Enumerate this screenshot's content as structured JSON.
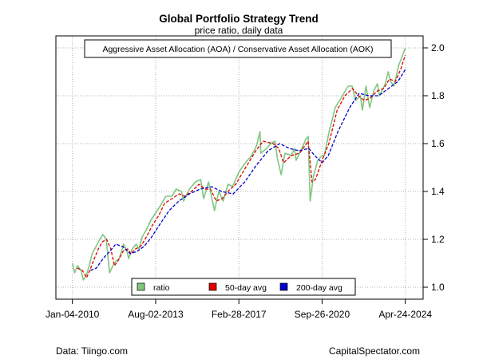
{
  "chart_data": {
    "type": "line",
    "title": "Global Portfolio Strategy Trend",
    "subtitle": "price ratio, daily data",
    "legend_title": "Aggressive Asset Allocation (AOA) / Conservative Asset Allocation (AOK)",
    "x_tick_labels": [
      "Jan-04-2010",
      "Aug-02-2013",
      "Feb-28-2017",
      "Sep-26-2020",
      "Apr-24-2024"
    ],
    "x_ticks": [
      "2010-01-04",
      "2013-08-02",
      "2017-02-28",
      "2020-09-26",
      "2024-04-24"
    ],
    "y_ticks": [
      1.0,
      1.2,
      1.4,
      1.6,
      1.8,
      2.0
    ],
    "xlim": [
      "2009-04-20",
      "2025-01-28"
    ],
    "ylim": [
      0.95,
      2.05
    ],
    "y_axis_side": "right",
    "grid": true,
    "legend_position": "bottom",
    "series": [
      {
        "name": "ratio",
        "color": "#7fc77f",
        "style": "solid",
        "points": [
          [
            "2010-01-04",
            1.1
          ],
          [
            "2010-02-08",
            1.06
          ],
          [
            "2010-03-25",
            1.09
          ],
          [
            "2010-05-20",
            1.07
          ],
          [
            "2010-06-25",
            1.03
          ],
          [
            "2010-08-10",
            1.05
          ],
          [
            "2010-09-25",
            1.09
          ],
          [
            "2010-11-10",
            1.14
          ],
          [
            "2011-01-10",
            1.17
          ],
          [
            "2011-03-10",
            1.2
          ],
          [
            "2011-04-29",
            1.22
          ],
          [
            "2011-06-20",
            1.2
          ],
          [
            "2011-08-10",
            1.06
          ],
          [
            "2011-10-03",
            1.09
          ],
          [
            "2011-11-20",
            1.11
          ],
          [
            "2012-01-10",
            1.12
          ],
          [
            "2012-03-20",
            1.18
          ],
          [
            "2012-05-10",
            1.15
          ],
          [
            "2012-06-04",
            1.12
          ],
          [
            "2012-08-01",
            1.16
          ],
          [
            "2012-10-01",
            1.18
          ],
          [
            "2012-11-15",
            1.16
          ],
          [
            "2013-01-02",
            1.21
          ],
          [
            "2013-03-10",
            1.24
          ],
          [
            "2013-05-20",
            1.28
          ],
          [
            "2013-08-02",
            1.31
          ],
          [
            "2013-10-15",
            1.34
          ],
          [
            "2014-01-10",
            1.38
          ],
          [
            "2014-04-15",
            1.38
          ],
          [
            "2014-06-20",
            1.41
          ],
          [
            "2014-09-10",
            1.4
          ],
          [
            "2014-10-15",
            1.36
          ],
          [
            "2015-01-15",
            1.41
          ],
          [
            "2015-04-20",
            1.44
          ],
          [
            "2015-07-10",
            1.45
          ],
          [
            "2015-08-25",
            1.37
          ],
          [
            "2015-11-10",
            1.44
          ],
          [
            "2016-02-11",
            1.32
          ],
          [
            "2016-04-20",
            1.4
          ],
          [
            "2016-06-27",
            1.36
          ],
          [
            "2016-09-10",
            1.43
          ],
          [
            "2016-11-20",
            1.42
          ],
          [
            "2017-02-28",
            1.48
          ],
          [
            "2017-06-10",
            1.52
          ],
          [
            "2017-09-15",
            1.55
          ],
          [
            "2017-12-01",
            1.59
          ],
          [
            "2018-01-26",
            1.65
          ],
          [
            "2018-02-08",
            1.56
          ],
          [
            "2018-05-10",
            1.58
          ],
          [
            "2018-07-10",
            1.6
          ],
          [
            "2018-09-20",
            1.61
          ],
          [
            "2018-10-25",
            1.54
          ],
          [
            "2018-12-24",
            1.47
          ],
          [
            "2019-02-20",
            1.56
          ],
          [
            "2019-05-30",
            1.55
          ],
          [
            "2019-07-20",
            1.58
          ],
          [
            "2019-08-15",
            1.53
          ],
          [
            "2019-11-15",
            1.58
          ],
          [
            "2020-01-17",
            1.62
          ],
          [
            "2020-02-20",
            1.63
          ],
          [
            "2020-03-23",
            1.36
          ],
          [
            "2020-05-10",
            1.46
          ],
          [
            "2020-07-20",
            1.53
          ],
          [
            "2020-09-26",
            1.55
          ],
          [
            "2020-10-30",
            1.55
          ],
          [
            "2021-01-15",
            1.65
          ],
          [
            "2021-04-20",
            1.75
          ],
          [
            "2021-07-20",
            1.79
          ],
          [
            "2021-11-08",
            1.84
          ],
          [
            "2022-01-10",
            1.84
          ],
          [
            "2022-03-08",
            1.78
          ],
          [
            "2022-05-20",
            1.8
          ],
          [
            "2022-06-20",
            1.74
          ],
          [
            "2022-08-16",
            1.84
          ],
          [
            "2022-10-13",
            1.75
          ],
          [
            "2022-12-15",
            1.82
          ],
          [
            "2023-02-10",
            1.85
          ],
          [
            "2023-03-15",
            1.8
          ],
          [
            "2023-06-15",
            1.85
          ],
          [
            "2023-07-31",
            1.9
          ],
          [
            "2023-09-05",
            1.86
          ],
          [
            "2023-10-27",
            1.84
          ],
          [
            "2024-01-15",
            1.93
          ],
          [
            "2024-03-15",
            1.97
          ],
          [
            "2024-04-24",
            2.0
          ]
        ]
      },
      {
        "name": "50-day avg",
        "color": "#e00000",
        "style": "dashed",
        "points": [
          [
            "2010-03-20",
            1.08
          ],
          [
            "2010-06-10",
            1.07
          ],
          [
            "2010-08-15",
            1.04
          ],
          [
            "2010-10-20",
            1.08
          ],
          [
            "2010-12-15",
            1.12
          ],
          [
            "2011-02-15",
            1.16
          ],
          [
            "2011-04-20",
            1.19
          ],
          [
            "2011-06-25",
            1.2
          ],
          [
            "2011-08-30",
            1.16
          ],
          [
            "2011-10-25",
            1.09
          ],
          [
            "2011-12-20",
            1.11
          ],
          [
            "2012-03-10",
            1.15
          ],
          [
            "2012-05-20",
            1.16
          ],
          [
            "2012-07-10",
            1.14
          ],
          [
            "2012-09-20",
            1.16
          ],
          [
            "2012-12-10",
            1.17
          ],
          [
            "2013-03-10",
            1.21
          ],
          [
            "2013-06-15",
            1.26
          ],
          [
            "2013-09-20",
            1.3
          ],
          [
            "2013-12-20",
            1.35
          ],
          [
            "2014-04-15",
            1.37
          ],
          [
            "2014-08-10",
            1.39
          ],
          [
            "2014-10-30",
            1.38
          ],
          [
            "2015-02-15",
            1.4
          ],
          [
            "2015-06-15",
            1.43
          ],
          [
            "2015-09-20",
            1.41
          ],
          [
            "2015-12-10",
            1.41
          ],
          [
            "2016-03-10",
            1.36
          ],
          [
            "2016-06-10",
            1.37
          ],
          [
            "2016-09-10",
            1.4
          ],
          [
            "2017-01-10",
            1.43
          ],
          [
            "2017-06-15",
            1.5
          ],
          [
            "2017-11-20",
            1.57
          ],
          [
            "2018-03-15",
            1.61
          ],
          [
            "2018-08-20",
            1.6
          ],
          [
            "2018-11-15",
            1.58
          ],
          [
            "2019-02-01",
            1.52
          ],
          [
            "2019-06-01",
            1.55
          ],
          [
            "2019-10-10",
            1.56
          ],
          [
            "2020-02-20",
            1.61
          ],
          [
            "2020-04-20",
            1.44
          ],
          [
            "2020-06-15",
            1.45
          ],
          [
            "2020-09-26",
            1.53
          ],
          [
            "2021-01-10",
            1.6
          ],
          [
            "2021-05-20",
            1.74
          ],
          [
            "2021-09-20",
            1.8
          ],
          [
            "2022-01-15",
            1.83
          ],
          [
            "2022-04-20",
            1.8
          ],
          [
            "2022-07-20",
            1.78
          ],
          [
            "2022-10-20",
            1.79
          ],
          [
            "2023-02-10",
            1.82
          ],
          [
            "2023-05-20",
            1.83
          ],
          [
            "2023-08-20",
            1.87
          ],
          [
            "2023-11-20",
            1.86
          ],
          [
            "2024-02-10",
            1.91
          ],
          [
            "2024-04-24",
            1.97
          ]
        ]
      },
      {
        "name": "200-day avg",
        "color": "#0000cc",
        "style": "dashed",
        "points": [
          [
            "2010-10-15",
            1.07
          ],
          [
            "2011-01-15",
            1.08
          ],
          [
            "2011-05-01",
            1.12
          ],
          [
            "2011-08-15",
            1.15
          ],
          [
            "2011-11-15",
            1.18
          ],
          [
            "2012-03-01",
            1.17
          ],
          [
            "2012-07-01",
            1.14
          ],
          [
            "2012-10-15",
            1.15
          ],
          [
            "2013-02-01",
            1.17
          ],
          [
            "2013-06-01",
            1.21
          ],
          [
            "2013-10-01",
            1.26
          ],
          [
            "2014-03-01",
            1.32
          ],
          [
            "2014-08-01",
            1.36
          ],
          [
            "2015-01-15",
            1.39
          ],
          [
            "2015-07-01",
            1.41
          ],
          [
            "2016-01-01",
            1.42
          ],
          [
            "2016-06-01",
            1.4
          ],
          [
            "2016-12-01",
            1.39
          ],
          [
            "2017-06-01",
            1.44
          ],
          [
            "2017-12-01",
            1.51
          ],
          [
            "2018-06-01",
            1.57
          ],
          [
            "2018-12-01",
            1.6
          ],
          [
            "2019-05-01",
            1.58
          ],
          [
            "2019-10-01",
            1.57
          ],
          [
            "2020-03-01",
            1.58
          ],
          [
            "2020-06-01",
            1.55
          ],
          [
            "2020-09-26",
            1.52
          ],
          [
            "2021-01-01",
            1.55
          ],
          [
            "2021-06-01",
            1.65
          ],
          [
            "2021-12-01",
            1.75
          ],
          [
            "2022-05-01",
            1.81
          ],
          [
            "2022-10-01",
            1.8
          ],
          [
            "2023-03-01",
            1.8
          ],
          [
            "2023-08-01",
            1.83
          ],
          [
            "2024-01-01",
            1.86
          ],
          [
            "2024-04-24",
            1.91
          ]
        ]
      }
    ]
  },
  "footer": {
    "source": "Data: Tiingo.com",
    "credit": "CapitalSpectator.com"
  }
}
